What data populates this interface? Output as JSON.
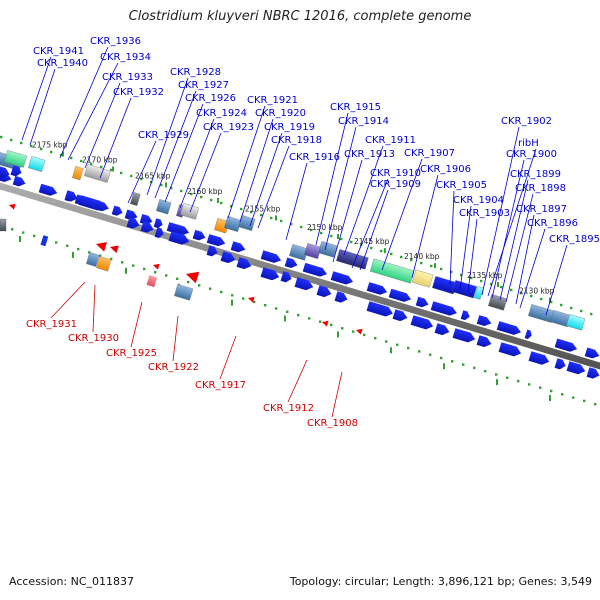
{
  "title": "Clostridium kluyveri NBRC 12016, complete genome",
  "footer": {
    "accession": "Accession: NC_011837",
    "summary": "Topology: circular; Length: 3,896,121 bp; Genes: 3,549"
  },
  "colors": {
    "forward_label": "#0000cc",
    "reverse_label": "#cc0000",
    "cds": "#1533e0",
    "backbone": "#777777"
  },
  "kbp_ticks": [
    {
      "label": "2175 kbp",
      "kbp": 2175
    },
    {
      "label": "2170 kbp",
      "kbp": 2170
    },
    {
      "label": "2165 kbp",
      "kbp": 2165
    },
    {
      "label": "2160 kbp",
      "kbp": 2160
    },
    {
      "label": "2155 kbp",
      "kbp": 2155
    },
    {
      "label": "2150 kbp",
      "kbp": 2150
    },
    {
      "label": "2145 kbp",
      "kbp": 2145
    },
    {
      "label": "2140 kbp",
      "kbp": 2140
    },
    {
      "label": "2135 kbp",
      "kbp": 2135
    },
    {
      "label": "2130 kbp",
      "kbp": 2130
    }
  ],
  "forward_gene_labels": [
    "CKR_1941",
    "CKR_1940",
    "CKR_1936",
    "CKR_1934",
    "CKR_1933",
    "CKR_1932",
    "CKR_1928",
    "CKR_1927",
    "CKR_1926",
    "CKR_1929",
    "CKR_1924",
    "CKR_1923",
    "CKR_1921",
    "CKR_1920",
    "CKR_1919",
    "CKR_1918",
    "CKR_1916",
    "CKR_1915",
    "CKR_1914",
    "CKR_1913",
    "CKR_1911",
    "CKR_1910",
    "CKR_1909",
    "CKR_1907",
    "CKR_1906",
    "CKR_1905",
    "CKR_1904",
    "CKR_1903",
    "CKR_1902",
    "ribH",
    "CKR_1900",
    "CKR_1899",
    "CKR_1898",
    "CKR_1897",
    "CKR_1896",
    "CKR_1895"
  ],
  "reverse_gene_labels": [
    "CKR_1931",
    "CKR_1930",
    "CKR_1925",
    "CKR_1922",
    "CKR_1917",
    "CKR_1912",
    "CKR_1908"
  ]
}
